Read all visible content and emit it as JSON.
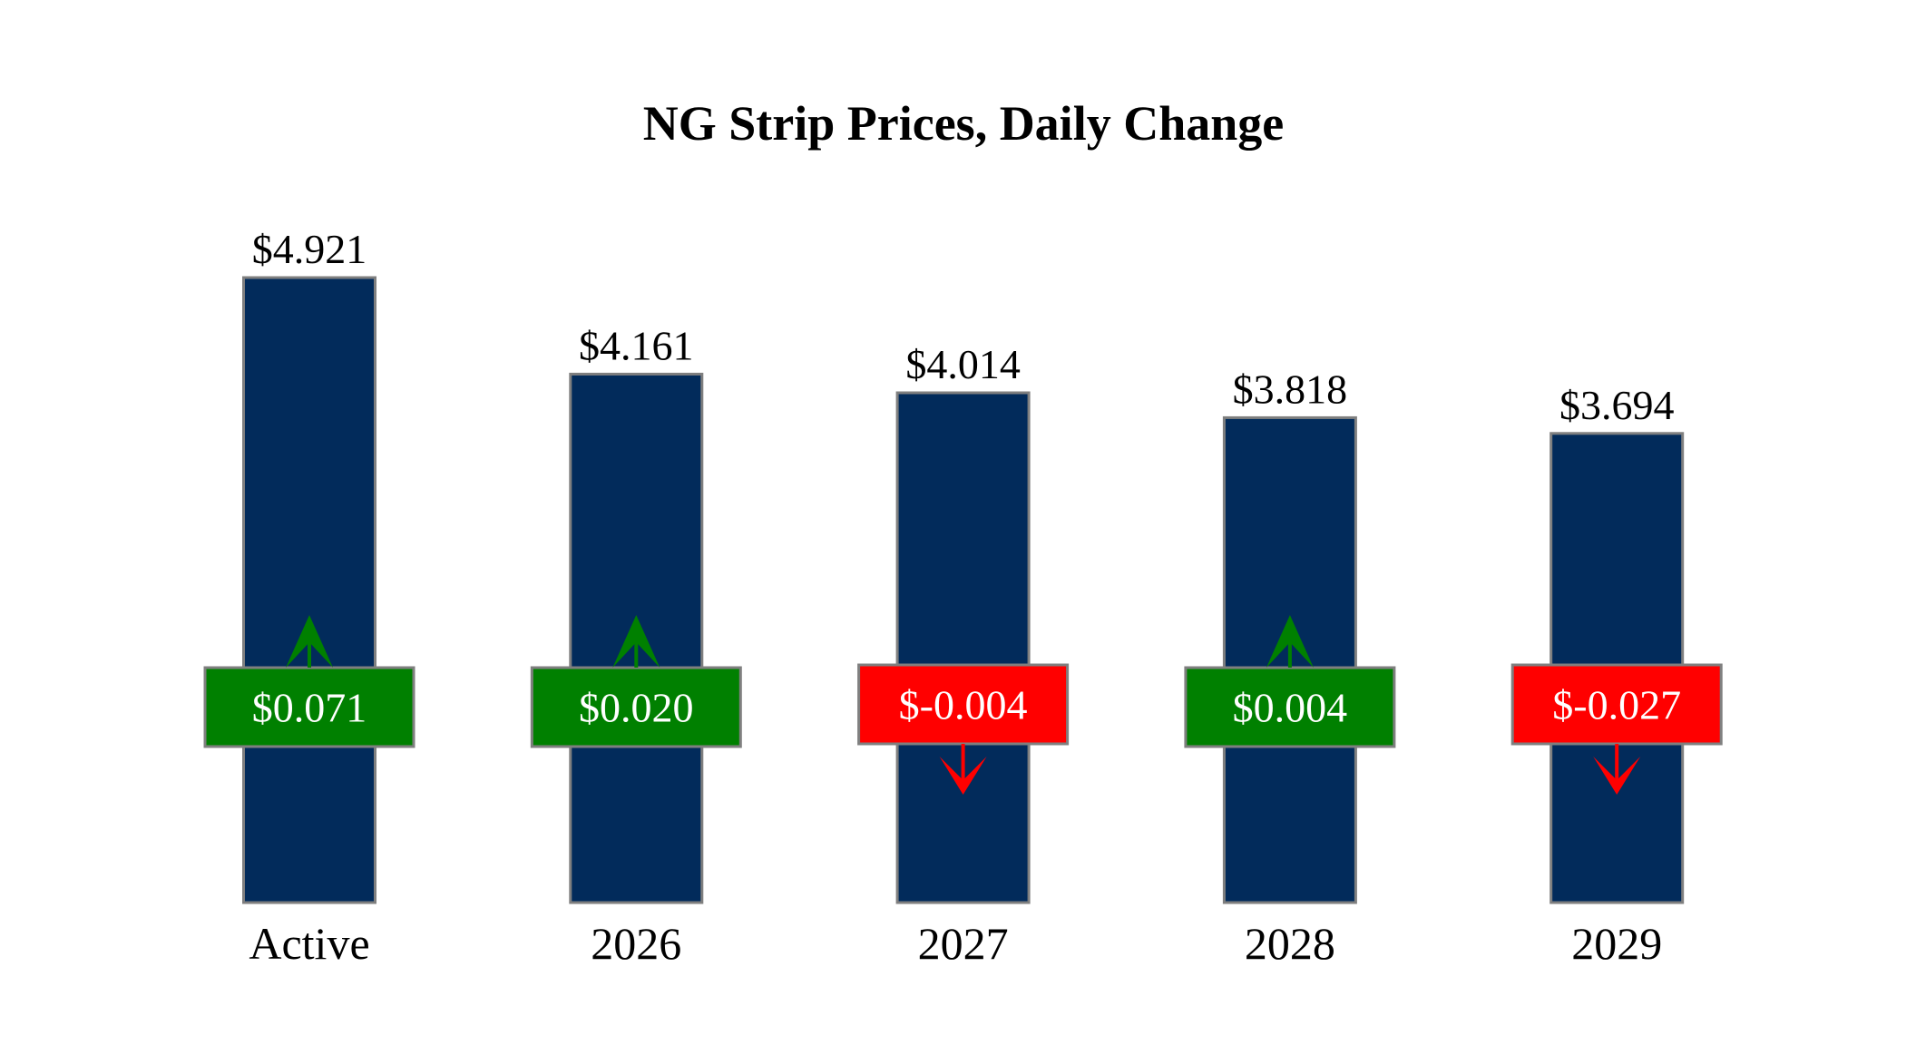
{
  "chart_data": {
    "type": "bar",
    "title": "NG Strip Prices, Daily Change",
    "categories": [
      "Active",
      "2026",
      "2027",
      "2028",
      "2029"
    ],
    "values": [
      4.921,
      4.161,
      4.014,
      3.818,
      3.694
    ],
    "value_labels": [
      "$4.921",
      "$4.161",
      "$4.014",
      "$3.818",
      "$3.694"
    ],
    "changes": [
      0.071,
      0.02,
      -0.004,
      0.004,
      -0.027
    ],
    "change_labels": [
      "$0.071",
      "$0.020",
      "$-0.004",
      "$0.004",
      "$-0.027"
    ],
    "ylim": [
      0,
      4.921
    ],
    "grid": false,
    "xlabel": "",
    "ylabel": "",
    "colors": {
      "bar": "#022b5b",
      "bar_border": "#7f7f7f",
      "up": "#008000",
      "down": "#ff0000",
      "box_text": "#ffffff"
    }
  }
}
